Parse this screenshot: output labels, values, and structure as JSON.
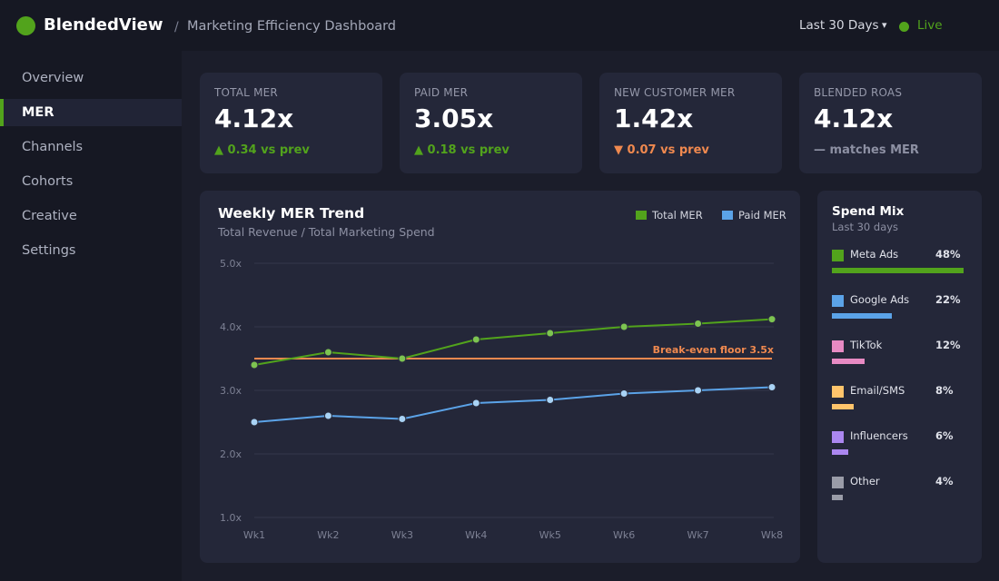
{
  "header": {
    "brand": "BlendedView",
    "separator": "/",
    "breadcrumb": "Marketing Efficiency Dashboard",
    "date_range": "Last 30 Days",
    "caret": "▾",
    "live_label": "Live",
    "accent": "#52a31c"
  },
  "sidebar": {
    "items": [
      {
        "label": "Overview",
        "active": false
      },
      {
        "label": "MER",
        "active": true
      },
      {
        "label": "Channels",
        "active": false
      },
      {
        "label": "Cohorts",
        "active": false
      },
      {
        "label": "Creative",
        "active": false
      },
      {
        "label": "Settings",
        "active": false
      }
    ]
  },
  "kpis": [
    {
      "label": "TOTAL MER",
      "value": "4.12x",
      "delta": "▲ 0.34 vs prev",
      "status": "up",
      "color": "#52a31c"
    },
    {
      "label": "PAID MER",
      "value": "3.05x",
      "delta": "▲ 0.18 vs prev",
      "status": "up",
      "color": "#52a31c"
    },
    {
      "label": "NEW CUSTOMER MER",
      "value": "1.42x",
      "delta": "▼ 0.07 vs prev",
      "status": "down",
      "color": "#f0894f"
    },
    {
      "label": "BLENDED ROAS",
      "value": "4.12x",
      "delta": "— matches MER",
      "status": "neutral",
      "color": "#8d90a3"
    }
  ],
  "trend": {
    "title": "Weekly MER Trend",
    "subtitle": "Total Revenue / Total Marketing Spend",
    "chart_data": {
      "type": "line",
      "categories": [
        "Wk1",
        "Wk2",
        "Wk3",
        "Wk4",
        "Wk5",
        "Wk6",
        "Wk7",
        "Wk8"
      ],
      "series": [
        {
          "name": "Total MER",
          "color": "#52a31c",
          "values": [
            3.4,
            3.6,
            3.5,
            3.8,
            3.9,
            4.0,
            4.05,
            4.12
          ]
        },
        {
          "name": "Paid MER",
          "color": "#5ba3e8",
          "values": [
            2.5,
            2.6,
            2.55,
            2.8,
            2.85,
            2.95,
            3.0,
            3.05
          ]
        }
      ],
      "yticks": [
        "5.0x",
        "4.0x",
        "3.0x",
        "2.0x",
        "1.0x"
      ],
      "ytick_values": [
        5.0,
        4.0,
        3.0,
        2.0,
        1.0
      ],
      "ylim": [
        1.0,
        5.0
      ],
      "grid": true,
      "legend_position": "top-right",
      "reference_line": {
        "value": 3.5,
        "label": "Break-even floor 3.5x",
        "color": "#f0894f"
      }
    }
  },
  "spend_mix": {
    "title": "Spend Mix",
    "subtitle": "Last 30 days",
    "items": [
      {
        "name": "Meta Ads",
        "pct_label": "48%",
        "pct": 48,
        "color": "#52a31c"
      },
      {
        "name": "Google Ads",
        "pct_label": "22%",
        "pct": 22,
        "color": "#5ba3e8"
      },
      {
        "name": "TikTok",
        "pct_label": "12%",
        "pct": 12,
        "color": "#e78ac3"
      },
      {
        "name": "Email/SMS",
        "pct_label": "8%",
        "pct": 8,
        "color": "#ffc46b"
      },
      {
        "name": "Influencers",
        "pct_label": "6%",
        "pct": 6,
        "color": "#ab87f0"
      },
      {
        "name": "Other",
        "pct_label": "4%",
        "pct": 4,
        "color": "#9a9ca8"
      }
    ]
  }
}
